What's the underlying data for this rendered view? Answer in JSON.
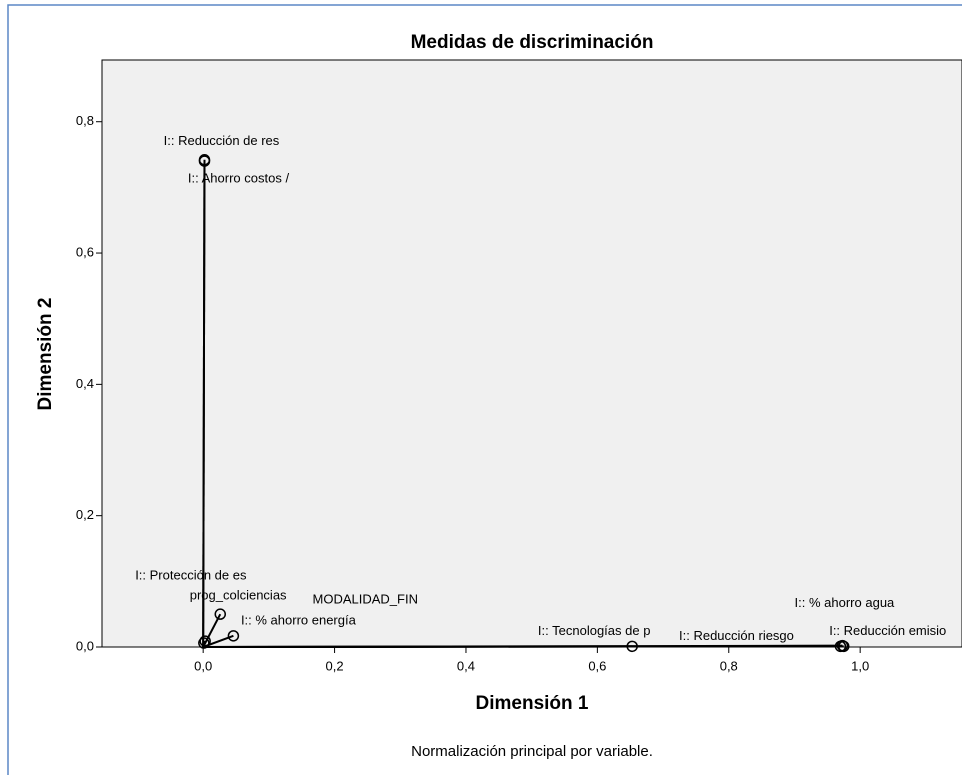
{
  "chart_data": {
    "type": "scatter",
    "title": "Medidas de discriminación",
    "x_label": "Dimensión 1",
    "y_label": "Dimensión 2",
    "footnote": "Normalización principal por variable.",
    "xlim": [
      -0.154,
      1.155
    ],
    "ylim": [
      0,
      0.894
    ],
    "xticks": [
      {
        "value": 0,
        "label": "0,0"
      },
      {
        "value": 0.2,
        "label": "0,2"
      },
      {
        "value": 0.4,
        "label": "0,4"
      },
      {
        "value": 0.6,
        "label": "0,6"
      },
      {
        "value": 0.8,
        "label": "0,8"
      },
      {
        "value": 1.0,
        "label": "1,0"
      }
    ],
    "yticks": [
      {
        "value": 0,
        "label": "0,0"
      },
      {
        "value": 0.2,
        "label": "0,2"
      },
      {
        "value": 0.4,
        "label": "0,4"
      },
      {
        "value": 0.6,
        "label": "0,6"
      },
      {
        "value": 0.8,
        "label": "0,8"
      }
    ],
    "points": [
      {
        "label": "I:: Reducción de res",
        "x": 0.002,
        "y": 0.742
      },
      {
        "label": "I:: Ahorro costos /",
        "x": 0.002,
        "y": 0.74
      },
      {
        "label": "I:: Protección de es",
        "x": 0.001,
        "y": 0.006
      },
      {
        "label": "prog_colciencias",
        "x": 0.003,
        "y": 0.009
      },
      {
        "label": "MODALIDAD_FIN",
        "x": 0.026,
        "y": 0.05
      },
      {
        "label": "I:: % ahorro energía",
        "x": 0.046,
        "y": 0.017
      },
      {
        "label": "I:: Tecnologías de p",
        "x": 0.653,
        "y": 0.001
      },
      {
        "label": "I:: Reducción riesgo",
        "x": 0.97,
        "y": 0.001
      },
      {
        "label": "I:: % ahorro agua",
        "x": 0.973,
        "y": 0.002
      },
      {
        "label": "I:: Reducción emisio",
        "x": 0.975,
        "y": 0.001
      }
    ]
  }
}
